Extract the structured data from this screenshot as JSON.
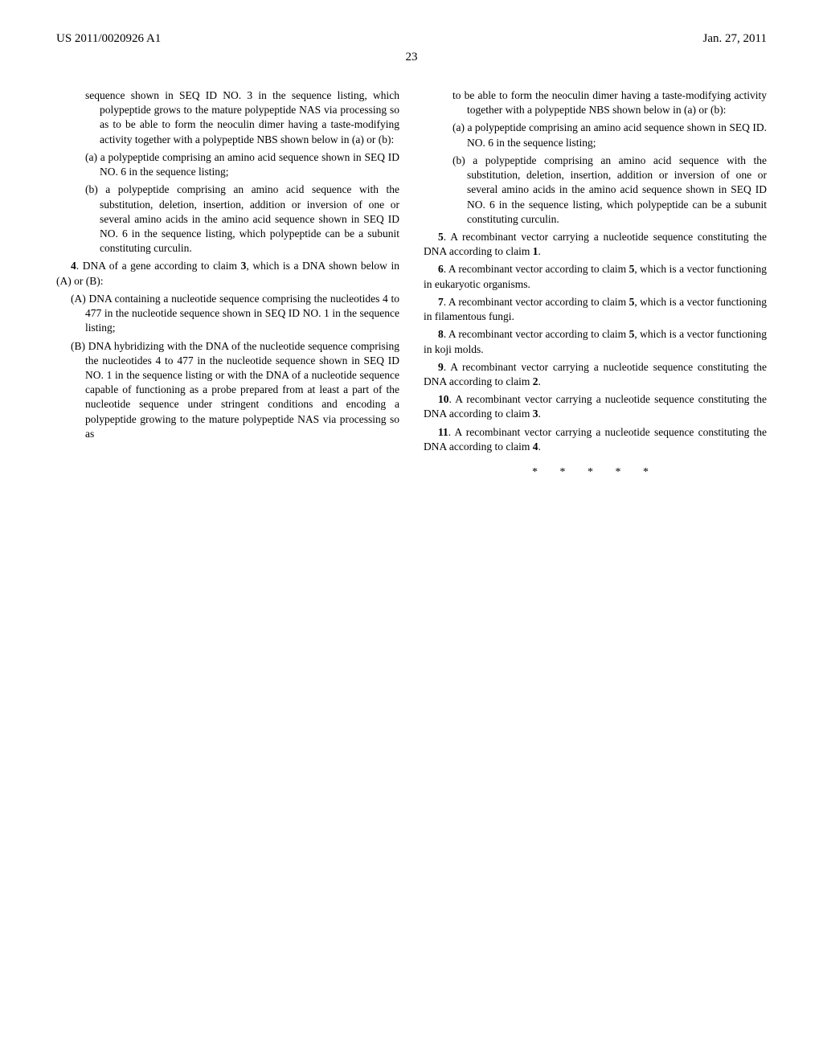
{
  "header": {
    "pub_number": "US 2011/0020926 A1",
    "pub_date": "Jan. 27, 2011"
  },
  "page_number": "23",
  "left_column": {
    "p1": "sequence shown in SEQ ID NO. 3 in the sequence listing, which polypeptide grows to the mature polypeptide NAS via processing so as to be able to form the neoculin dimer having a taste-modifying activity together with a polypeptide NBS shown below in (a) or (b):",
    "p2": "(a) a polypeptide comprising an amino acid sequence shown in SEQ ID NO. 6 in the sequence listing;",
    "p3": "(b) a polypeptide comprising an amino acid sequence with the substitution, deletion, insertion, addition or inversion of one or several amino acids in the amino acid sequence shown in SEQ ID NO. 6 in the sequence listing, which polypeptide can be a subunit constituting curculin.",
    "claim4_num": "4",
    "claim4_text": ". DNA of a gene according to claim ",
    "claim4_ref": "3",
    "claim4_tail": ", which is a DNA shown below in (A) or (B):",
    "p5": "(A) DNA containing a nucleotide sequence comprising the nucleotides 4 to 477 in the nucleotide sequence shown in SEQ ID NO. 1 in the sequence listing;",
    "p6": "(B) DNA hybridizing with the DNA of the nucleotide sequence comprising the nucleotides 4 to 477 in the nucleotide sequence shown in SEQ ID NO. 1 in the sequence listing or with the DNA of a nucleotide sequence capable of functioning as a probe prepared from at least a part of the nucleotide sequence under stringent conditions and encoding a polypeptide growing to the mature polypeptide NAS via processing so as"
  },
  "right_column": {
    "p1": "to be able to form the neoculin dimer having a taste-modifying activity together with a polypeptide NBS shown below in (a) or (b):",
    "p2": "(a) a polypeptide comprising an amino acid sequence shown in SEQ ID. NO. 6 in the sequence listing;",
    "p3": "(b) a polypeptide comprising an amino acid sequence with the substitution, deletion, insertion, addition or inversion of one or several amino acids in the amino acid sequence shown in SEQ ID NO. 6 in the sequence listing, which polypeptide can be a subunit constituting curculin.",
    "claim5_num": "5",
    "claim5_text": ". A recombinant vector carrying a nucleotide sequence constituting the DNA according to claim ",
    "claim5_ref": "1",
    "claim5_tail": ".",
    "claim6_num": "6",
    "claim6_text": ". A recombinant vector according to claim ",
    "claim6_ref": "5",
    "claim6_tail": ", which is a vector functioning in eukaryotic organisms.",
    "claim7_num": "7",
    "claim7_text": ". A recombinant vector according to claim ",
    "claim7_ref": "5",
    "claim7_tail": ", which is a vector functioning in filamentous fungi.",
    "claim8_num": "8",
    "claim8_text": ". A recombinant vector according to claim ",
    "claim8_ref": "5",
    "claim8_tail": ", which is a vector functioning in koji molds.",
    "claim9_num": "9",
    "claim9_text": ". A recombinant vector carrying a nucleotide sequence constituting the DNA according to claim ",
    "claim9_ref": "2",
    "claim9_tail": ".",
    "claim10_num": "10",
    "claim10_text": ". A recombinant vector carrying a nucleotide sequence constituting the DNA according to claim ",
    "claim10_ref": "3",
    "claim10_tail": ".",
    "claim11_num": "11",
    "claim11_text": ". A recombinant vector carrying a nucleotide sequence constituting the DNA according to claim ",
    "claim11_ref": "4",
    "claim11_tail": "."
  },
  "end_marks": "* * * * *"
}
